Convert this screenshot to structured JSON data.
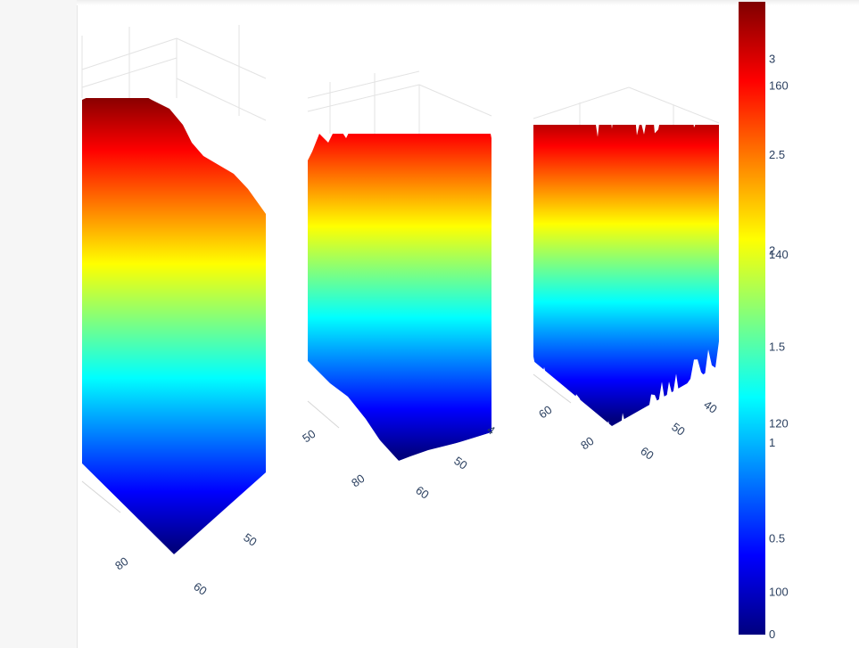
{
  "colorscale_name": "Jet",
  "colorscale": [
    "#00007f",
    "#0000ff",
    "#007fff",
    "#00ffff",
    "#7fff7f",
    "#ffff00",
    "#ff7f00",
    "#ff0000",
    "#7f0000"
  ],
  "chart_data": [
    {
      "type": "surface",
      "surface_style": "smooth-ridge",
      "x_tick_labels": [
        "80"
      ],
      "y_tick_labels": [
        "60",
        "50"
      ]
    },
    {
      "type": "surface",
      "surface_style": "ridges",
      "x_tick_labels": [
        "50",
        "80",
        "60"
      ],
      "y_tick_labels": [
        "50",
        "4"
      ]
    },
    {
      "type": "surface",
      "surface_style": "noise",
      "x_tick_labels": [
        "60",
        "80",
        "60"
      ],
      "y_tick_labels": [
        "50",
        "40"
      ]
    }
  ],
  "colorbars": [
    {
      "range": [
        0,
        3.3
      ],
      "ticks": [
        "3",
        "2.5",
        "2",
        "1.5",
        "1",
        "0.5",
        "0"
      ]
    },
    {
      "range": [
        95,
        170
      ],
      "ticks": [
        "160",
        "140",
        "120",
        "100"
      ]
    }
  ]
}
